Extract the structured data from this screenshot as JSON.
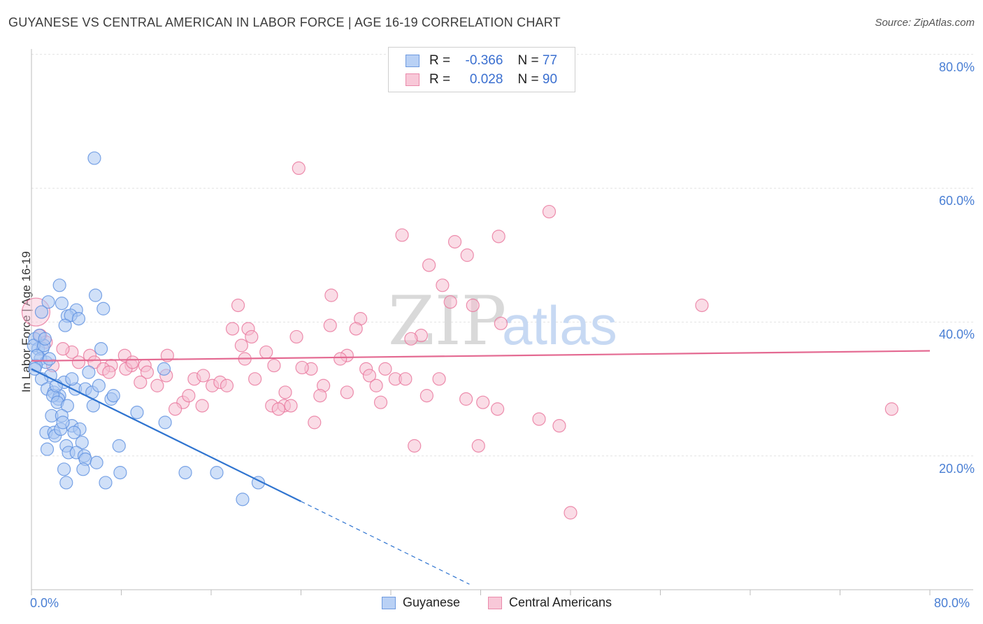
{
  "title": "GUYANESE VS CENTRAL AMERICAN IN LABOR FORCE | AGE 16-19 CORRELATION CHART",
  "source": "Source: ZipAtlas.com",
  "colors": {
    "guyanese": "#5b8fe0",
    "guyanese_fill": "#aac7f2",
    "central": "#e8739a",
    "central_fill": "#f6bfd2",
    "accent_text": "#4a7fd4"
  },
  "legend": {
    "rows": [
      {
        "r_label": "R =",
        "r_value": "-0.366",
        "n_label": "N =",
        "n_value": "77"
      },
      {
        "r_label": "R =",
        "r_value": "0.028",
        "n_label": "N =",
        "n_value": "90"
      }
    ]
  },
  "bottom_legend": {
    "series_a": "Guyanese",
    "series_b": "Central Americans"
  },
  "watermark": {
    "zip": "ZIP",
    "atlas": "atlas"
  },
  "chart_data": {
    "type": "scatter",
    "title": "GUYANESE VS CENTRAL AMERICAN IN LABOR FORCE | AGE 16-19 CORRELATION CHART",
    "xlabel": "",
    "ylabel": "In Labor Force | Age 16-19",
    "xlim": [
      0,
      80
    ],
    "ylim": [
      0,
      82
    ],
    "x_tick_labels": [
      "0.0%",
      "80.0%"
    ],
    "y_ticks": [
      20,
      40,
      60,
      80
    ],
    "y_tick_labels": [
      "20.0%",
      "40.0%",
      "60.0%",
      "80.0%"
    ],
    "grid": true,
    "legend_position": "top-center",
    "series": [
      {
        "name": "Guyanese",
        "r": -0.366,
        "n": 77,
        "trend": {
          "x0": 0,
          "y0": 33.0,
          "x1": 24,
          "y1": 13.2,
          "dashed_to_x": 39
        },
        "points": [
          [
            5.6,
            64.5
          ],
          [
            2.5,
            45.5
          ],
          [
            5.7,
            44.0
          ],
          [
            1.5,
            43.0
          ],
          [
            2.7,
            42.8
          ],
          [
            0.9,
            41.5
          ],
          [
            6.4,
            42.0
          ],
          [
            4.0,
            41.8
          ],
          [
            3.2,
            40.9
          ],
          [
            3.5,
            41.0
          ],
          [
            4.2,
            40.5
          ],
          [
            3.0,
            39.5
          ],
          [
            0.3,
            37.5
          ],
          [
            0.6,
            36.0
          ],
          [
            1.0,
            36.0
          ],
          [
            0.2,
            36.5
          ],
          [
            6.2,
            36.0
          ],
          [
            0.8,
            34.5
          ],
          [
            1.3,
            34.0
          ],
          [
            0.4,
            33.5
          ],
          [
            11.8,
            33.0
          ],
          [
            5.1,
            32.5
          ],
          [
            1.7,
            32.0
          ],
          [
            0.9,
            31.5
          ],
          [
            2.9,
            31.0
          ],
          [
            3.9,
            30.0
          ],
          [
            4.8,
            30.0
          ],
          [
            1.4,
            30.0
          ],
          [
            2.0,
            29.5
          ],
          [
            2.5,
            29.0
          ],
          [
            5.4,
            29.5
          ],
          [
            7.1,
            28.5
          ],
          [
            7.3,
            29.0
          ],
          [
            2.4,
            28.5
          ],
          [
            1.9,
            29.0
          ],
          [
            2.3,
            28.0
          ],
          [
            3.2,
            27.5
          ],
          [
            5.5,
            27.5
          ],
          [
            9.4,
            26.5
          ],
          [
            1.8,
            26.0
          ],
          [
            2.7,
            26.0
          ],
          [
            11.9,
            25.0
          ],
          [
            3.6,
            24.5
          ],
          [
            4.3,
            24.0
          ],
          [
            1.3,
            23.5
          ],
          [
            2.0,
            23.5
          ],
          [
            2.1,
            23.0
          ],
          [
            2.6,
            24.0
          ],
          [
            3.8,
            23.5
          ],
          [
            4.5,
            22.0
          ],
          [
            3.1,
            21.5
          ],
          [
            7.8,
            21.5
          ],
          [
            1.4,
            21.0
          ],
          [
            3.3,
            20.5
          ],
          [
            4.0,
            20.5
          ],
          [
            4.7,
            20.0
          ],
          [
            4.8,
            19.5
          ],
          [
            5.8,
            19.0
          ],
          [
            2.9,
            18.0
          ],
          [
            4.6,
            18.0
          ],
          [
            7.9,
            17.5
          ],
          [
            13.7,
            17.5
          ],
          [
            16.5,
            17.5
          ],
          [
            3.1,
            16.0
          ],
          [
            6.6,
            16.0
          ],
          [
            20.2,
            16.0
          ],
          [
            18.8,
            13.5
          ],
          [
            0.5,
            35.0
          ],
          [
            1.1,
            36.5
          ],
          [
            0.7,
            38.0
          ],
          [
            1.6,
            34.5
          ],
          [
            2.2,
            30.5
          ],
          [
            3.6,
            31.5
          ],
          [
            0.3,
            33.0
          ],
          [
            1.2,
            37.5
          ],
          [
            6.0,
            30.5
          ],
          [
            2.8,
            25.0
          ]
        ]
      },
      {
        "name": "Central Americans",
        "r": 0.028,
        "n": 90,
        "trend": {
          "x0": 0,
          "y0": 34.2,
          "x1": 80,
          "y1": 35.7
        },
        "points": [
          [
            23.8,
            63.0
          ],
          [
            46.1,
            56.5
          ],
          [
            33.0,
            53.0
          ],
          [
            41.6,
            52.8
          ],
          [
            37.7,
            52.0
          ],
          [
            38.8,
            50.0
          ],
          [
            35.4,
            48.5
          ],
          [
            36.6,
            45.5
          ],
          [
            26.7,
            44.0
          ],
          [
            18.4,
            42.5
          ],
          [
            37.3,
            43.0
          ],
          [
            39.3,
            42.5
          ],
          [
            59.7,
            42.5
          ],
          [
            29.3,
            40.5
          ],
          [
            41.8,
            39.8
          ],
          [
            17.9,
            39.0
          ],
          [
            19.3,
            39.0
          ],
          [
            26.6,
            39.5
          ],
          [
            28.9,
            39.0
          ],
          [
            23.6,
            37.8
          ],
          [
            19.6,
            37.8
          ],
          [
            34.7,
            38.0
          ],
          [
            33.8,
            37.5
          ],
          [
            18.7,
            36.5
          ],
          [
            3.6,
            35.5
          ],
          [
            5.2,
            35.0
          ],
          [
            8.3,
            35.0
          ],
          [
            12.1,
            35.0
          ],
          [
            28.1,
            35.0
          ],
          [
            19.0,
            34.5
          ],
          [
            27.5,
            34.5
          ],
          [
            5.6,
            34.0
          ],
          [
            7.1,
            33.5
          ],
          [
            8.9,
            33.5
          ],
          [
            10.1,
            33.5
          ],
          [
            21.6,
            33.5
          ],
          [
            24.9,
            33.0
          ],
          [
            10.3,
            32.5
          ],
          [
            6.4,
            33.0
          ],
          [
            8.4,
            33.0
          ],
          [
            29.8,
            33.0
          ],
          [
            12.0,
            32.0
          ],
          [
            14.5,
            31.5
          ],
          [
            15.3,
            32.0
          ],
          [
            19.9,
            31.5
          ],
          [
            30.1,
            32.0
          ],
          [
            32.4,
            31.5
          ],
          [
            33.3,
            31.5
          ],
          [
            36.3,
            31.5
          ],
          [
            9.7,
            31.0
          ],
          [
            11.2,
            30.5
          ],
          [
            16.1,
            30.5
          ],
          [
            16.8,
            31.0
          ],
          [
            17.4,
            30.5
          ],
          [
            26.0,
            30.5
          ],
          [
            30.7,
            30.5
          ],
          [
            22.6,
            29.5
          ],
          [
            28.1,
            29.5
          ],
          [
            25.7,
            29.0
          ],
          [
            35.2,
            29.0
          ],
          [
            38.7,
            28.5
          ],
          [
            31.1,
            28.0
          ],
          [
            40.2,
            28.0
          ],
          [
            13.5,
            28.0
          ],
          [
            15.2,
            27.5
          ],
          [
            21.4,
            27.5
          ],
          [
            22.5,
            27.5
          ],
          [
            23.1,
            27.5
          ],
          [
            12.8,
            27.0
          ],
          [
            22.0,
            27.0
          ],
          [
            41.5,
            27.0
          ],
          [
            76.6,
            27.0
          ],
          [
            25.2,
            25.0
          ],
          [
            45.2,
            25.5
          ],
          [
            47.0,
            24.5
          ],
          [
            34.1,
            21.5
          ],
          [
            39.8,
            21.5
          ],
          [
            48.0,
            11.5
          ],
          [
            0.4,
            41.5
          ],
          [
            0.8,
            38.0
          ],
          [
            1.3,
            37.0
          ],
          [
            2.8,
            36.0
          ],
          [
            1.9,
            33.5
          ],
          [
            4.2,
            34.0
          ],
          [
            6.9,
            32.5
          ],
          [
            9.0,
            34.0
          ],
          [
            24.1,
            33.2
          ],
          [
            14.0,
            29.0
          ],
          [
            31.5,
            33.0
          ],
          [
            20.9,
            35.5
          ]
        ],
        "point_sizes_hint": [
          [
            0.4,
            41.5,
            "large"
          ],
          [
            1.3,
            38.0,
            "large"
          ]
        ]
      }
    ]
  }
}
